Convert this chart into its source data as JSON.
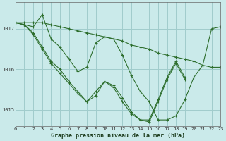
{
  "title": "Graphe pression niveau de la mer (hPa)",
  "bg_color": "#caeaea",
  "grid_color": "#a0cccc",
  "line_color": "#2d6e2d",
  "marker": "+",
  "xlim": [
    0,
    23
  ],
  "ylim": [
    1014.6,
    1017.65
  ],
  "yticks": [
    1015,
    1016,
    1017
  ],
  "xticks": [
    0,
    1,
    2,
    3,
    4,
    5,
    6,
    7,
    8,
    9,
    10,
    11,
    12,
    13,
    14,
    15,
    16,
    17,
    18,
    19,
    20,
    21,
    22,
    23
  ],
  "series": [
    [
      1017.15,
      1017.15,
      1017.15,
      1017.15,
      1017.1,
      1017.05,
      1017.0,
      1016.95,
      1016.9,
      1016.85,
      1016.8,
      1016.75,
      1016.7,
      1016.6,
      1016.55,
      1016.5,
      1016.4,
      1016.35,
      1016.3,
      1016.25,
      1016.2,
      1016.1,
      1016.05,
      1016.05
    ],
    [
      1017.15,
      1017.1,
      1017.05,
      1017.35,
      1016.75,
      1016.55,
      1016.25,
      1015.95,
      1016.05,
      1016.65,
      1016.8,
      1016.75,
      1016.35,
      1015.85,
      1015.45,
      1015.2,
      1014.75,
      1014.75,
      1014.85,
      1015.25,
      1015.8,
      1016.1,
      1017.0,
      1017.05
    ],
    [
      1017.15,
      1017.1,
      1016.9,
      1016.55,
      1016.2,
      1016.0,
      1015.7,
      1015.45,
      1015.2,
      1015.35,
      1015.7,
      1015.6,
      1015.3,
      1014.95,
      1014.75,
      1014.75,
      1015.25,
      1015.8,
      1016.2,
      1015.8,
      null,
      null,
      null,
      null
    ],
    [
      1017.15,
      1017.1,
      1016.85,
      1016.5,
      1016.15,
      1015.9,
      1015.65,
      1015.4,
      1015.2,
      1015.45,
      1015.7,
      1015.55,
      1015.2,
      1014.9,
      1014.75,
      1014.7,
      1015.2,
      1015.75,
      1016.15,
      1015.75,
      null,
      null,
      null,
      null
    ]
  ]
}
